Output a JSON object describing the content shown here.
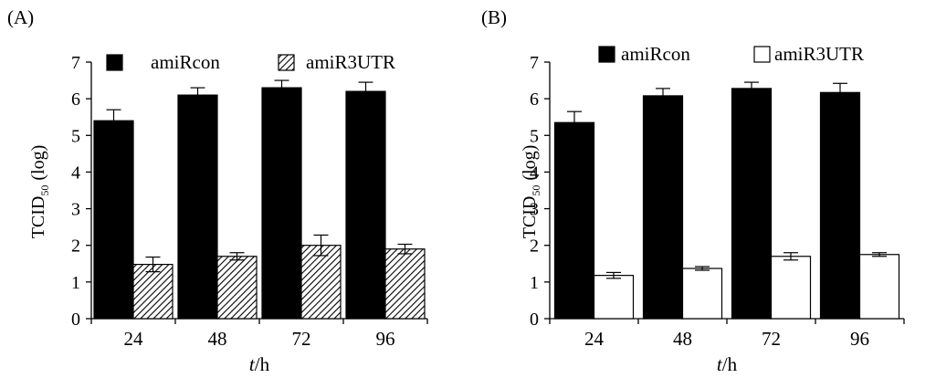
{
  "chart_data": [
    {
      "type": "bar",
      "panel_label": "(A)",
      "categories": [
        "24",
        "48",
        "72",
        "96"
      ],
      "xlabel_italic": "t",
      "xlabel_unit": "/h",
      "ylabel_main": "TCID",
      "ylabel_sub": "50",
      "ylabel_suffix": " (log)",
      "ylim": [
        0,
        7
      ],
      "yticks": [
        "0",
        "1",
        "2",
        "3",
        "4",
        "5",
        "6",
        "7"
      ],
      "legend_placement": "top",
      "series": [
        {
          "name": "amiRcon",
          "style": "solid",
          "color": "#000000",
          "values": [
            5.4,
            6.1,
            6.3,
            6.2
          ],
          "errors": [
            0.3,
            0.2,
            0.2,
            0.25
          ]
        },
        {
          "name": "amiR3UTR",
          "style": "hatched",
          "color": "#000000",
          "values": [
            1.48,
            1.7,
            2.0,
            1.9
          ],
          "errors": [
            0.2,
            0.1,
            0.28,
            0.13
          ]
        }
      ]
    },
    {
      "type": "bar",
      "panel_label": "(B)",
      "categories": [
        "24",
        "48",
        "72",
        "96"
      ],
      "xlabel_italic": "t",
      "xlabel_unit": "/h",
      "ylabel_main": "TCID",
      "ylabel_sub": "50",
      "ylabel_suffix": " (log)",
      "ylim": [
        0,
        7
      ],
      "yticks": [
        "0",
        "1",
        "2",
        "3",
        "4",
        "5",
        "6",
        "7"
      ],
      "legend_placement": "top",
      "series": [
        {
          "name": "amiRcon",
          "style": "solid",
          "color": "#000000",
          "values": [
            5.35,
            6.08,
            6.28,
            6.17
          ],
          "errors": [
            0.3,
            0.2,
            0.17,
            0.25
          ]
        },
        {
          "name": "amiR3UTR",
          "style": "open",
          "color": "#ffffff",
          "values": [
            1.18,
            1.37,
            1.7,
            1.75
          ],
          "errors": [
            0.08,
            0.05,
            0.1,
            0.05
          ]
        }
      ]
    }
  ]
}
